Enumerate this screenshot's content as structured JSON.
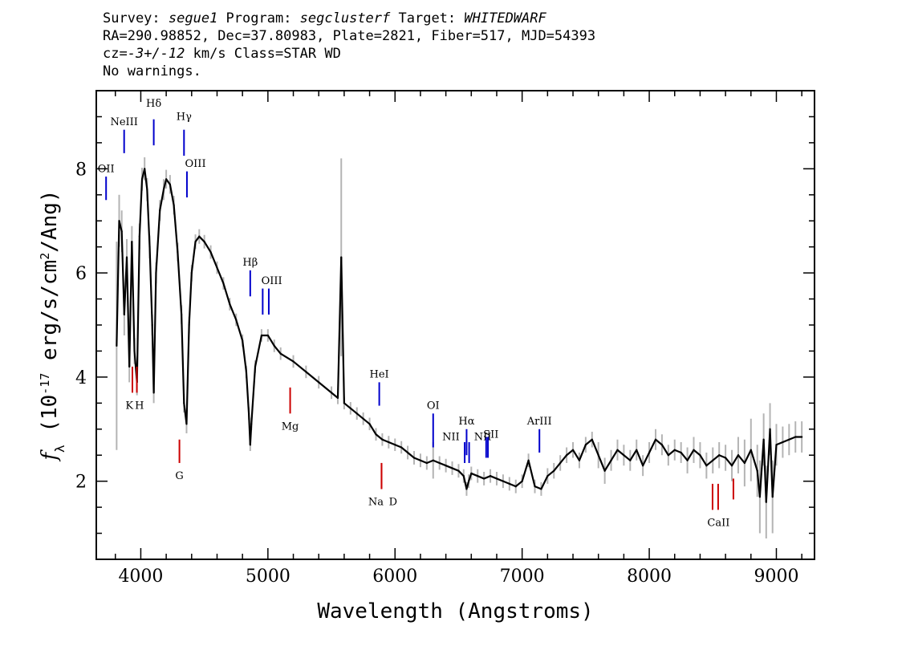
{
  "header": {
    "l1_survey_k": "Survey: ",
    "l1_survey_v": "segue1",
    "l1_prog_k": " Program: ",
    "l1_prog_v": "segclusterf",
    "l1_targ_k": " Target: ",
    "l1_targ_v": "WHITEDWARF",
    "line2": "RA=290.98852, Dec=37.80983, Plate=2821, Fiber=517, MJD=54393",
    "l3_cz_k": "cz=",
    "l3_cz_v": "-3+/-12",
    "l3_rest": " km/s Class=STAR WD",
    "line4": "No warnings."
  },
  "chart_data": {
    "type": "line",
    "xlabel": "Wavelength (Angstroms)",
    "ylabel_parts": [
      "f",
      "λ",
      " (10",
      "-17",
      " erg/s/cm",
      "2",
      "/Ang)"
    ],
    "xlim": [
      3650,
      9300
    ],
    "ylim": [
      0.5,
      9.5
    ],
    "xticks": [
      4000,
      5000,
      6000,
      7000,
      8000,
      9000
    ],
    "yticks": [
      2,
      4,
      6,
      8
    ],
    "series": [
      {
        "color": "#000000",
        "error_color": "#b4b4b4",
        "x": [
          3810,
          3830,
          3850,
          3870,
          3890,
          3910,
          3930,
          3950,
          3970,
          3990,
          4010,
          4030,
          4050,
          4070,
          4090,
          4102,
          4120,
          4150,
          4180,
          4200,
          4230,
          4260,
          4290,
          4320,
          4340,
          4360,
          4380,
          4400,
          4430,
          4460,
          4500,
          4550,
          4600,
          4650,
          4700,
          4750,
          4800,
          4830,
          4850,
          4861,
          4870,
          4900,
          4950,
          5000,
          5050,
          5100,
          5200,
          5300,
          5400,
          5500,
          5550,
          5577,
          5600,
          5650,
          5700,
          5750,
          5800,
          5850,
          5900,
          5950,
          6000,
          6050,
          6100,
          6150,
          6200,
          6250,
          6300,
          6350,
          6400,
          6450,
          6500,
          6540,
          6563,
          6580,
          6600,
          6650,
          6700,
          6750,
          6800,
          6850,
          6900,
          6950,
          7000,
          7050,
          7100,
          7150,
          7200,
          7250,
          7300,
          7350,
          7400,
          7450,
          7500,
          7550,
          7600,
          7650,
          7700,
          7750,
          7800,
          7850,
          7900,
          7950,
          8000,
          8050,
          8100,
          8150,
          8200,
          8250,
          8300,
          8350,
          8400,
          8450,
          8500,
          8550,
          8600,
          8650,
          8700,
          8750,
          8800,
          8850,
          8870,
          8900,
          8920,
          8950,
          8970,
          9000,
          9050,
          9100,
          9150,
          9200
        ],
        "y": [
          4.6,
          7.0,
          6.8,
          5.2,
          6.3,
          4.2,
          6.6,
          4.5,
          3.9,
          6.7,
          7.8,
          8.0,
          7.6,
          6.5,
          5.0,
          3.7,
          6.0,
          7.2,
          7.6,
          7.8,
          7.7,
          7.3,
          6.4,
          5.2,
          3.5,
          3.1,
          5.0,
          6.0,
          6.6,
          6.7,
          6.6,
          6.4,
          6.1,
          5.8,
          5.4,
          5.1,
          4.7,
          4.1,
          3.3,
          2.7,
          3.1,
          4.2,
          4.8,
          4.8,
          4.6,
          4.45,
          4.3,
          4.1,
          3.9,
          3.7,
          3.6,
          6.3,
          3.5,
          3.4,
          3.3,
          3.2,
          3.1,
          2.9,
          2.8,
          2.75,
          2.7,
          2.65,
          2.55,
          2.45,
          2.4,
          2.35,
          2.4,
          2.35,
          2.3,
          2.25,
          2.2,
          2.1,
          1.85,
          2.0,
          2.15,
          2.1,
          2.05,
          2.1,
          2.05,
          2.0,
          1.95,
          1.9,
          2.0,
          2.4,
          1.9,
          1.85,
          2.1,
          2.2,
          2.35,
          2.5,
          2.6,
          2.4,
          2.7,
          2.8,
          2.5,
          2.2,
          2.4,
          2.6,
          2.5,
          2.4,
          2.6,
          2.3,
          2.55,
          2.8,
          2.7,
          2.5,
          2.6,
          2.55,
          2.4,
          2.6,
          2.5,
          2.3,
          2.4,
          2.5,
          2.45,
          2.3,
          2.5,
          2.35,
          2.6,
          2.2,
          1.7,
          2.8,
          1.6,
          3.0,
          1.7,
          2.7,
          2.75,
          2.8,
          2.85,
          2.85
        ],
        "err": [
          2.0,
          0.5,
          0.4,
          0.4,
          0.35,
          0.3,
          0.3,
          0.25,
          0.25,
          0.25,
          0.22,
          0.22,
          0.22,
          0.22,
          0.2,
          0.2,
          0.2,
          0.2,
          0.2,
          0.18,
          0.18,
          0.18,
          0.18,
          0.18,
          0.18,
          0.18,
          0.16,
          0.16,
          0.14,
          0.14,
          0.13,
          0.13,
          0.12,
          0.12,
          0.12,
          0.12,
          0.12,
          0.12,
          0.12,
          0.12,
          0.12,
          0.12,
          0.12,
          0.12,
          0.12,
          0.12,
          0.12,
          0.12,
          0.12,
          0.12,
          0.12,
          1.9,
          0.12,
          0.12,
          0.12,
          0.12,
          0.12,
          0.12,
          0.12,
          0.12,
          0.12,
          0.12,
          0.13,
          0.13,
          0.13,
          0.13,
          0.35,
          0.13,
          0.13,
          0.13,
          0.13,
          0.13,
          0.13,
          0.13,
          0.13,
          0.13,
          0.13,
          0.13,
          0.13,
          0.13,
          0.13,
          0.13,
          0.13,
          0.13,
          0.13,
          0.13,
          0.15,
          0.15,
          0.15,
          0.15,
          0.15,
          0.15,
          0.15,
          0.15,
          0.25,
          0.25,
          0.2,
          0.2,
          0.2,
          0.2,
          0.2,
          0.2,
          0.2,
          0.2,
          0.2,
          0.2,
          0.2,
          0.2,
          0.25,
          0.25,
          0.25,
          0.25,
          0.25,
          0.25,
          0.25,
          0.3,
          0.35,
          0.45,
          0.6,
          0.5,
          0.7,
          0.5,
          0.7,
          0.5,
          0.7,
          0.4,
          0.3,
          0.3,
          0.3,
          0.3
        ]
      }
    ],
    "emission_lines": [
      {
        "label": "OII",
        "x": 3727,
        "y0": 7.4,
        "y1": 7.85,
        "lx": 3727,
        "ly": 8.0
      },
      {
        "label": "NeIII",
        "x": 3869,
        "y0": 8.3,
        "y1": 8.75,
        "lx": 3869,
        "ly": 8.9
      },
      {
        "label": "Hδ",
        "x": 4102,
        "y0": 8.45,
        "y1": 8.95,
        "lx": 4102,
        "ly": 9.25
      },
      {
        "label": "Hγ",
        "x": 4340,
        "y0": 8.25,
        "y1": 8.75,
        "lx": 4340,
        "ly": 9.0
      },
      {
        "label": "OIII",
        "x": 4363,
        "y0": 7.45,
        "y1": 7.95,
        "lx": 4430,
        "ly": 8.1
      },
      {
        "label": "Hβ",
        "x": 4861,
        "y0": 5.55,
        "y1": 6.05,
        "lx": 4861,
        "ly": 6.2
      },
      {
        "label": "OIII",
        "x": 4959,
        "y0": 5.2,
        "y1": 5.7,
        "lx": 5030,
        "ly": 5.85
      },
      {
        "label": "",
        "x": 5007,
        "y0": 5.2,
        "y1": 5.7,
        "lx": 5007,
        "ly": 5.85
      },
      {
        "label": "HeI",
        "x": 5876,
        "y0": 3.45,
        "y1": 3.9,
        "lx": 5876,
        "ly": 4.05
      },
      {
        "label": "OI",
        "x": 6300,
        "y0": 2.65,
        "y1": 3.3,
        "lx": 6300,
        "ly": 3.45
      },
      {
        "label": "NII",
        "x": 6548,
        "y0": 2.35,
        "y1": 2.75,
        "lx": 6440,
        "ly": 2.85
      },
      {
        "label": "Hα",
        "x": 6563,
        "y0": 2.5,
        "y1": 3.0,
        "lx": 6563,
        "ly": 3.15
      },
      {
        "label": "NII",
        "x": 6583,
        "y0": 2.35,
        "y1": 2.75,
        "lx": 6690,
        "ly": 2.85
      },
      {
        "label": "SII",
        "x": 6717,
        "y0": 2.45,
        "y1": 2.85,
        "lx": 6755,
        "ly": 2.9
      },
      {
        "label": "",
        "x": 6731,
        "y0": 2.45,
        "y1": 2.85,
        "lx": 6731,
        "ly": 2.9
      },
      {
        "label": "ArIII",
        "x": 7136,
        "y0": 2.55,
        "y1": 3.0,
        "lx": 7136,
        "ly": 3.15
      }
    ],
    "absorption_lines": [
      {
        "label": "K",
        "x": 3934,
        "y0": 3.7,
        "y1": 4.2,
        "lx": 3910,
        "ly": 3.45
      },
      {
        "label": "H",
        "x": 3969,
        "y0": 3.7,
        "y1": 4.2,
        "lx": 3990,
        "ly": 3.45
      },
      {
        "label": "G",
        "x": 4304,
        "y0": 2.35,
        "y1": 2.8,
        "lx": 4304,
        "ly": 2.1
      },
      {
        "label": "Mg",
        "x": 5175,
        "y0": 3.3,
        "y1": 3.8,
        "lx": 5175,
        "ly": 3.05
      },
      {
        "label": "Na",
        "x": 5894,
        "y0": 1.85,
        "y1": 2.35,
        "lx": 5850,
        "ly": 1.6
      },
      {
        "label": "D",
        "x": 5894,
        "y0": 1.85,
        "y1": 2.35,
        "lx": 5985,
        "ly": 1.6
      },
      {
        "label": "CaII",
        "x": 8498,
        "y0": 1.45,
        "y1": 1.95,
        "lx": 8545,
        "ly": 1.2
      },
      {
        "label": "",
        "x": 8542,
        "y0": 1.45,
        "y1": 1.95,
        "lx": 8542,
        "ly": 1.2
      },
      {
        "label": "",
        "x": 8662,
        "y0": 1.65,
        "y1": 2.05,
        "lx": 8662,
        "ly": 1.2
      }
    ],
    "emission_color": "#0000cc",
    "absorption_color": "#cc0000",
    "grid": false
  }
}
